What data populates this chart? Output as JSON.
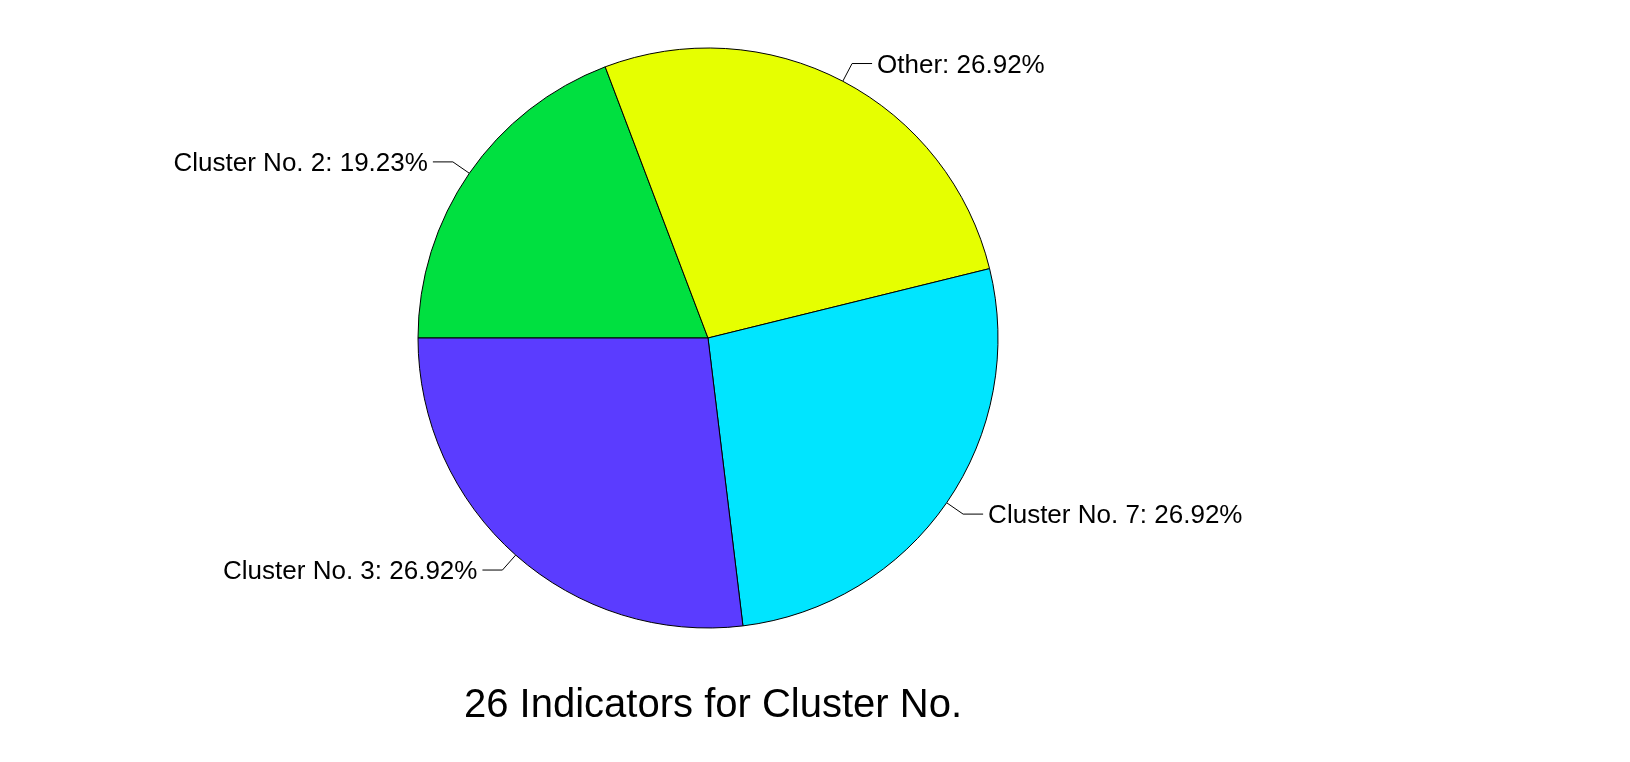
{
  "chart_data": {
    "type": "pie",
    "title": "26 Indicators for Cluster No.",
    "categories": [
      "Cluster No. 2",
      "Other",
      "Cluster No. 7",
      "Cluster No. 3"
    ],
    "values": [
      19.23,
      26.92,
      26.92,
      26.92
    ],
    "colors": [
      "#00e040",
      "#e6ff00",
      "#00e5ff",
      "#5b3cff"
    ],
    "value_labels": [
      "19.23%",
      "26.92%",
      "26.92%",
      "26.92%"
    ]
  }
}
